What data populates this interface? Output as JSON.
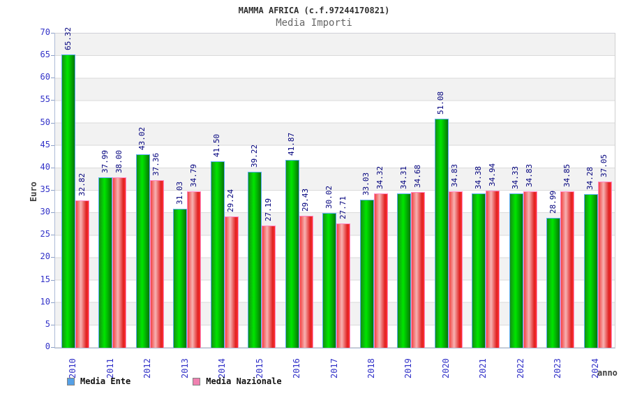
{
  "title": "MAMMA AFRICA (c.f.97244170821)",
  "subtitle": "Media Importi",
  "y_axis_title": "Euro",
  "x_axis_title": "anno",
  "legend": {
    "items": [
      {
        "label": "Media Ente",
        "swatch_color": "#55a0e6"
      },
      {
        "label": "Media Nazionale",
        "swatch_color": "#f080b0"
      }
    ]
  },
  "chart_data": {
    "type": "bar",
    "title": "MAMMA AFRICA (c.f.97244170821)",
    "subtitle": "Media Importi",
    "xlabel": "anno",
    "ylabel": "Euro",
    "ylim": [
      0,
      70
    ],
    "ytick_step": 5,
    "grid": "horizontal-bands-alternating",
    "legend_position": "bottom-left",
    "value_label_decimals": 2,
    "value_label_rotation": 90,
    "categories": [
      "2010",
      "2011",
      "2012",
      "2013",
      "2014",
      "2015",
      "2016",
      "2017",
      "2018",
      "2019",
      "2020",
      "2021",
      "2022",
      "2023",
      "2024"
    ],
    "series": [
      {
        "name": "Media Ente",
        "color": "#00cc00",
        "border_color": "#58acf0",
        "values": [
          65.32,
          37.99,
          43.02,
          31.03,
          41.5,
          39.22,
          41.87,
          30.02,
          33.03,
          34.31,
          51.08,
          34.38,
          34.33,
          28.99,
          34.28
        ]
      },
      {
        "name": "Media Nazionale",
        "color": "#ee2222",
        "border_color": "#ff85c2",
        "values": [
          32.82,
          38.0,
          37.36,
          34.79,
          29.24,
          27.19,
          29.43,
          27.71,
          34.32,
          34.68,
          34.83,
          34.94,
          34.83,
          34.85,
          37.05
        ]
      }
    ]
  },
  "colors": {
    "axis_label_blue": "#3232c8",
    "value_label_navy": "#00007d",
    "band_gray": "#f2f2f2",
    "background": "#ffffff"
  }
}
